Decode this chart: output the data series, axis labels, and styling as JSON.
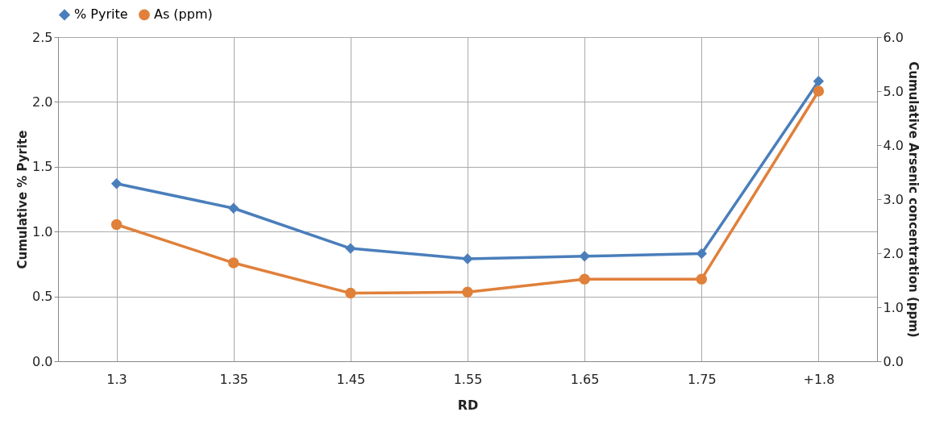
{
  "chart_data": {
    "type": "line",
    "xlabel": "RD",
    "ylabel": "Cumulative % Pyrite",
    "y2label": "Cumulative Arsenic concentration (ppm)",
    "categories": [
      "1.3",
      "1.35",
      "1.45",
      "1.55",
      "1.65",
      "1.75",
      "+1.8"
    ],
    "series": [
      {
        "name": "% Pyrite",
        "color": "#4a7ebb",
        "marker": "diamond",
        "values": [
          1.37,
          1.18,
          0.87,
          0.79,
          0.81,
          0.83,
          2.16
        ]
      },
      {
        "name": "As (ppm)",
        "color": "#e0803a",
        "marker": "circle",
        "axis": "y2",
        "values": [
          2.53,
          1.82,
          1.26,
          1.28,
          1.52,
          1.52,
          5.0
        ]
      }
    ],
    "ylim": [
      0,
      2.5
    ],
    "yticks": [
      {
        "value": 0,
        "label": "0.0"
      },
      {
        "value": 0.5,
        "label": "0.5"
      },
      {
        "value": 1,
        "label": "1.0"
      },
      {
        "value": 1.5,
        "label": "1.5"
      },
      {
        "value": 2,
        "label": "2.0"
      },
      {
        "value": 2.5,
        "label": "2.5"
      }
    ],
    "y2lim": [
      0,
      6
    ],
    "y2ticks": [
      {
        "value": 0,
        "label": "0.0"
      },
      {
        "value": 1,
        "label": "1.0"
      },
      {
        "value": 2,
        "label": "2.0"
      },
      {
        "value": 3,
        "label": "3.0"
      },
      {
        "value": 4,
        "label": "4.0"
      },
      {
        "value": 5,
        "label": "5.0"
      },
      {
        "value": 6,
        "label": "6.0"
      }
    ],
    "grid": true,
    "legend": "top",
    "line_style": "solid"
  }
}
